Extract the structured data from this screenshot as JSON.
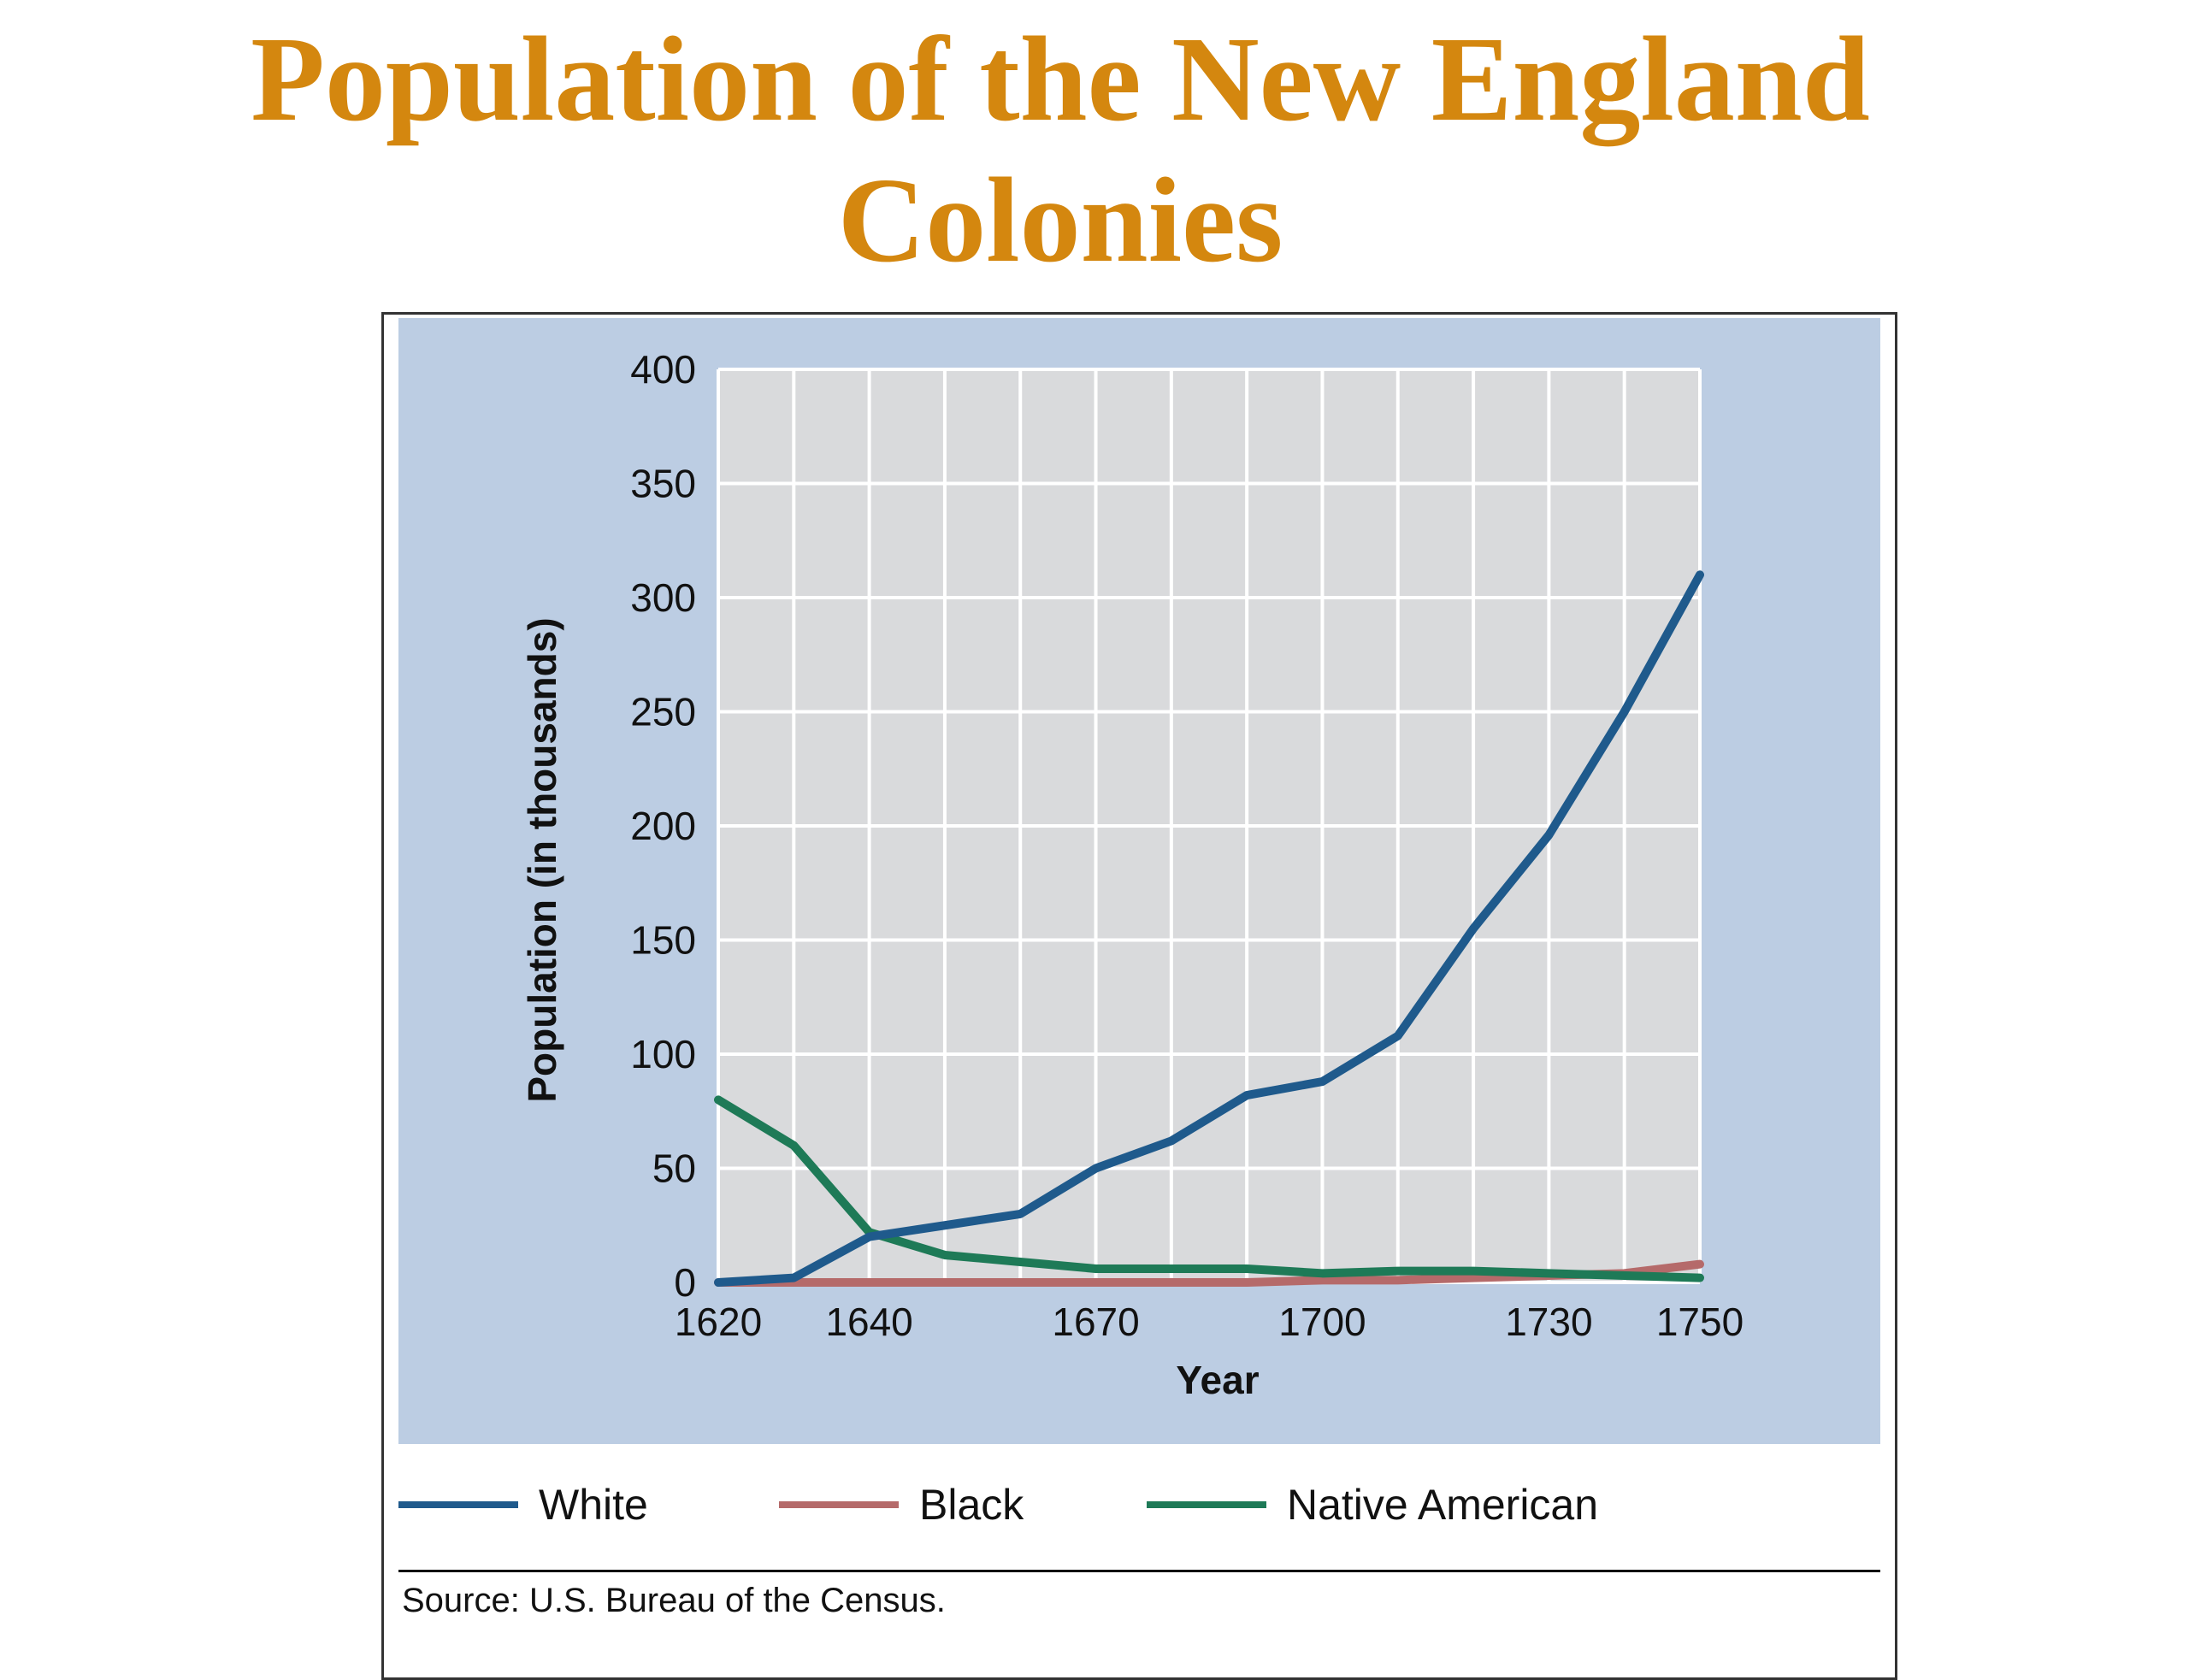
{
  "title": {
    "line1": "Population of the New England",
    "line2": "Colonies"
  },
  "source": "Source: U.S. Bureau of the Census.",
  "chart_data": {
    "type": "line",
    "xlabel": "Year",
    "ylabel": "Population (in thousands)",
    "xlim": [
      1620,
      1750
    ],
    "ylim": [
      0,
      400
    ],
    "x_ticks": [
      1620,
      1640,
      1670,
      1700,
      1730,
      1750
    ],
    "y_ticks": [
      0,
      50,
      100,
      150,
      200,
      250,
      300,
      350,
      400
    ],
    "grid": true,
    "legend_position": "bottom",
    "series": [
      {
        "name": "White",
        "color": "#1f5a8c",
        "x": [
          1620,
          1630,
          1640,
          1650,
          1660,
          1670,
          1680,
          1690,
          1700,
          1710,
          1720,
          1730,
          1740,
          1750
        ],
        "y": [
          0,
          2,
          20,
          25,
          30,
          50,
          62,
          82,
          88,
          108,
          155,
          196,
          250,
          310
        ]
      },
      {
        "name": "Black",
        "color": "#b56a6a",
        "x": [
          1620,
          1630,
          1640,
          1650,
          1660,
          1670,
          1680,
          1690,
          1700,
          1710,
          1720,
          1730,
          1740,
          1750
        ],
        "y": [
          0,
          0,
          0,
          0,
          0,
          0,
          0,
          0,
          1,
          1,
          2,
          3,
          4,
          8
        ]
      },
      {
        "name": "Native American",
        "color": "#1e7a57",
        "x": [
          1620,
          1630,
          1640,
          1650,
          1660,
          1670,
          1680,
          1690,
          1700,
          1710,
          1720,
          1730,
          1740,
          1750
        ],
        "y": [
          80,
          60,
          22,
          12,
          9,
          6,
          6,
          6,
          4,
          5,
          5,
          4,
          3,
          2
        ]
      }
    ]
  }
}
